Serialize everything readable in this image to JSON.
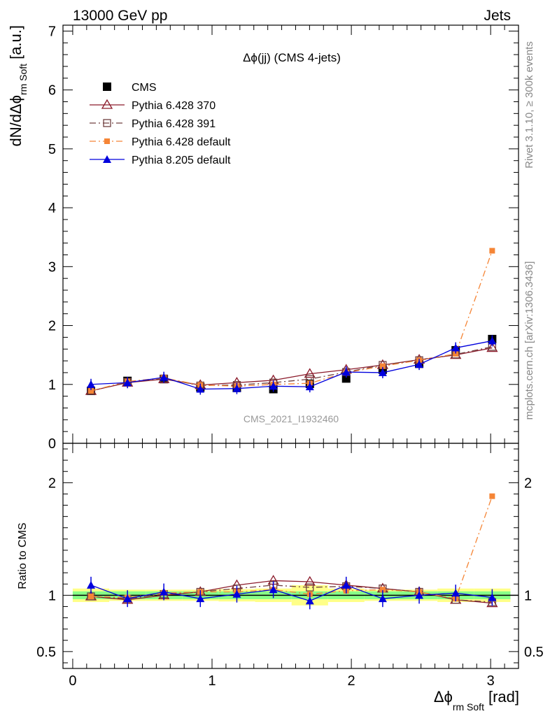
{
  "header": {
    "left": "13000 GeV pp",
    "right": "Jets"
  },
  "side_text": {
    "rivet": "Rivet 3.1.10, ≥ 300k events",
    "mcplots": "mcplots.cern.ch [arXiv:1306.3436]"
  },
  "chart_data": [
    {
      "type": "line",
      "title": "Δϕ(jj) (CMS 4-jets)",
      "watermark": "CMS_2021_I1932460",
      "ylabel": "dN/dΔϕ",
      "ylabel_sub": "rm Soft",
      "ylabel_unit": "[a.u.]",
      "ylim": [
        0,
        7.1
      ],
      "y_ticks": [
        0,
        1,
        2,
        3,
        4,
        5,
        6,
        7
      ],
      "y_tick_labels": [
        "0",
        "1",
        "2",
        "3",
        "4",
        "5",
        "6",
        "7"
      ],
      "xlim": [
        -0.07,
        3.2
      ],
      "x": [
        0.131,
        0.393,
        0.654,
        0.916,
        1.178,
        1.44,
        1.702,
        1.963,
        2.225,
        2.487,
        2.749,
        3.011
      ],
      "legend_position": "top-left",
      "series": [
        {
          "name": "CMS",
          "color": "#000000",
          "marker": "square-filled",
          "line": "none",
          "values": [
            0.89,
            1.06,
            1.09,
            0.95,
            0.94,
            0.92,
            1.01,
            1.1,
            1.25,
            1.35,
            1.58,
            1.77
          ]
        },
        {
          "name": "Pythia 6.428 370",
          "color": "#8b1a2a",
          "marker": "triangle-open",
          "line": "solid",
          "values": [
            0.89,
            1.03,
            1.09,
            0.99,
            1.03,
            1.07,
            1.18,
            1.25,
            1.33,
            1.42,
            1.5,
            1.62
          ]
        },
        {
          "name": "Pythia 6.428 391",
          "color": "#704040",
          "marker": "square-open",
          "line": "dashdot",
          "values": [
            0.89,
            1.04,
            1.1,
            0.98,
            0.99,
            1.03,
            1.09,
            1.21,
            1.33,
            1.41,
            1.51,
            1.64
          ]
        },
        {
          "name": "Pythia 6.428 default",
          "color": "#f58536",
          "marker": "square-small",
          "line": "dashdot",
          "values": [
            0.89,
            1.05,
            1.11,
            0.99,
            0.97,
            1.0,
            1.02,
            1.2,
            1.31,
            1.41,
            1.52,
            3.27
          ]
        },
        {
          "name": "Pythia 8.205 default",
          "color": "#0000dd",
          "marker": "triangle-filled",
          "line": "solid",
          "values": [
            1.0,
            1.03,
            1.12,
            0.92,
            0.93,
            0.97,
            0.96,
            1.21,
            1.2,
            1.34,
            1.62,
            1.74
          ]
        }
      ]
    },
    {
      "type": "line",
      "ylabel": "Ratio to CMS",
      "ylim": [
        0.35,
        2.35
      ],
      "y_ticks": [
        0.5,
        1,
        2
      ],
      "y_tick_labels": [
        "0.5",
        "1",
        "2"
      ],
      "xlim": [
        -0.07,
        3.2
      ],
      "x_ticks": [
        0,
        1,
        2,
        3
      ],
      "x_tick_labels": [
        "0",
        "1",
        "2",
        "3"
      ],
      "xlabel": "Δϕ",
      "xlabel_sub": "rm Soft",
      "xlabel_unit": "[rad]",
      "x": [
        0.131,
        0.393,
        0.654,
        0.916,
        1.178,
        1.44,
        1.702,
        1.963,
        2.225,
        2.487,
        2.749,
        3.011
      ],
      "band_edges": [
        0.0,
        0.262,
        0.524,
        0.785,
        1.047,
        1.309,
        1.571,
        1.833,
        2.094,
        2.356,
        2.618,
        2.88,
        3.142
      ],
      "band_inner_half": [
        0.035,
        0.035,
        0.035,
        0.035,
        0.035,
        0.035,
        0.035,
        0.035,
        0.035,
        0.035,
        0.035,
        0.035
      ],
      "band_outer_half": [
        0.06,
        0.05,
        0.05,
        0.05,
        0.055,
        0.06,
        0.09,
        0.06,
        0.05,
        0.05,
        0.06,
        0.06
      ],
      "series": [
        {
          "name": "Pythia 6.428 370",
          "color": "#8b1a2a",
          "marker": "triangle-open",
          "line": "solid",
          "values": [
            0.99,
            0.96,
            1.0,
            1.03,
            1.09,
            1.13,
            1.12,
            1.09,
            1.06,
            1.03,
            0.96,
            0.93
          ]
        },
        {
          "name": "Pythia 6.428 391",
          "color": "#704040",
          "marker": "square-open",
          "line": "dashdot",
          "values": [
            0.99,
            0.97,
            1.01,
            1.03,
            1.06,
            1.09,
            1.07,
            1.08,
            1.06,
            1.03,
            0.96,
            0.94
          ]
        },
        {
          "name": "Pythia 6.428 default",
          "color": "#f58536",
          "marker": "square-small",
          "line": "dashdot",
          "values": [
            0.99,
            0.98,
            1.02,
            1.03,
            1.03,
            1.05,
            1.01,
            1.04,
            1.05,
            1.03,
            0.97,
            1.88
          ]
        },
        {
          "name": "Pythia 8.205 default",
          "color": "#0000dd",
          "marker": "triangle-filled",
          "line": "solid",
          "values": [
            1.09,
            0.97,
            1.03,
            0.97,
            1.01,
            1.05,
            0.95,
            1.09,
            0.97,
            1.0,
            1.02,
            0.98
          ]
        }
      ]
    }
  ]
}
